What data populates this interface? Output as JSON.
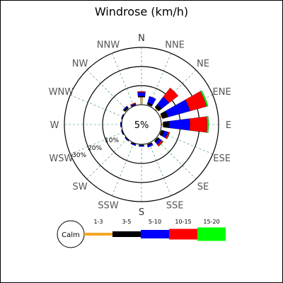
{
  "chart_data": {
    "type": "windrose",
    "title": "Windrose (km/h)",
    "center_label": "5%",
    "ring_labels": [
      "10%",
      "20%",
      "30%"
    ],
    "directions": [
      "N",
      "NNE",
      "NE",
      "ENE",
      "E",
      "ESE",
      "SE",
      "SSE",
      "S",
      "SSW",
      "SW",
      "WSW",
      "W",
      "WNW",
      "NW",
      "NNW"
    ],
    "legend": {
      "calm_label": "Calm",
      "bins": [
        {
          "label": "1-3",
          "color": "#f5a623"
        },
        {
          "label": "3-5",
          "color": "#000000"
        },
        {
          "label": "5-10",
          "color": "#0000ff"
        },
        {
          "label": "10-15",
          "color": "#ff0000"
        },
        {
          "label": "15-20",
          "color": "#00ff00"
        }
      ]
    },
    "series_by_direction": [
      {
        "dir": "N",
        "values": [
          4,
          0.5,
          2,
          0.5,
          0
        ]
      },
      {
        "dir": "NNE",
        "values": [
          0.5,
          1,
          3.5,
          0,
          0
        ]
      },
      {
        "dir": "NE",
        "values": [
          1,
          2,
          5,
          6,
          0
        ]
      },
      {
        "dir": "ENE",
        "values": [
          1,
          3,
          12,
          9,
          0.8
        ]
      },
      {
        "dir": "E",
        "values": [
          1,
          3,
          11,
          9,
          0.8
        ]
      },
      {
        "dir": "ESE",
        "values": [
          0.5,
          1.5,
          2,
          0.8,
          0.2
        ]
      },
      {
        "dir": "SE",
        "values": [
          0.5,
          1,
          1.5,
          1,
          0.2
        ]
      },
      {
        "dir": "SSE",
        "values": [
          0.5,
          0.5,
          1,
          0,
          0
        ]
      },
      {
        "dir": "S",
        "values": [
          0.3,
          0.3,
          0.6,
          0,
          0
        ]
      },
      {
        "dir": "SSW",
        "values": [
          0.3,
          0.3,
          0.6,
          0,
          0
        ]
      },
      {
        "dir": "SW",
        "values": [
          0.2,
          0.2,
          0.4,
          0,
          0
        ]
      },
      {
        "dir": "WSW",
        "values": [
          0.2,
          0.2,
          0.3,
          0,
          0
        ]
      },
      {
        "dir": "W",
        "values": [
          0.2,
          0.2,
          0.3,
          0,
          0
        ]
      },
      {
        "dir": "WNW",
        "values": [
          0.2,
          0.2,
          0.3,
          0,
          0
        ]
      },
      {
        "dir": "NW",
        "values": [
          0.5,
          1.0,
          0.5,
          0,
          0
        ]
      },
      {
        "dir": "NNW",
        "values": [
          0.3,
          0.2,
          0.5,
          0.5,
          0
        ]
      }
    ]
  }
}
